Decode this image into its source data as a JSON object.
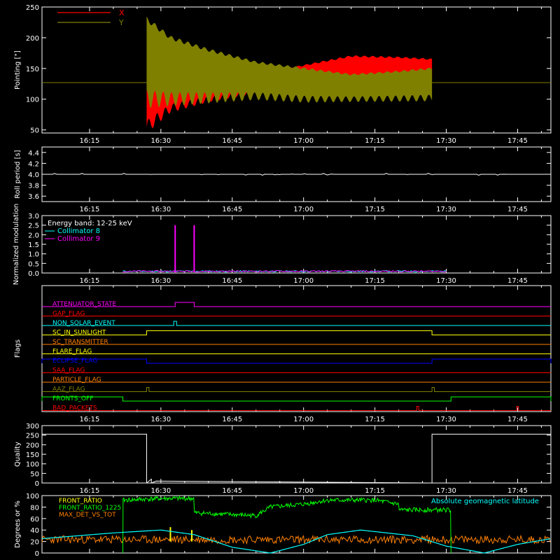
{
  "figure": {
    "background": "#000000",
    "foreground": "#ffffff"
  },
  "time_axis": {
    "start": "16:05",
    "end": "17:52",
    "tick_labels": [
      "16:15",
      "16:30",
      "16:45",
      "17:00",
      "17:15",
      "17:30",
      "17:45"
    ]
  },
  "chart_data": [
    {
      "id": "pointing",
      "type": "line",
      "ylabel": "Pointing [\"]",
      "ylim": [
        45,
        250
      ],
      "yticks": [
        50,
        100,
        150,
        200,
        250
      ],
      "legend": [
        {
          "name": "X",
          "color": "#ff0000"
        },
        {
          "name": "Y",
          "color": "#808000"
        }
      ],
      "baseline_value": 127,
      "active_range": [
        "16:27",
        "17:27"
      ],
      "envelope_x": {
        "times": [
          "16:27",
          "16:32",
          "16:40",
          "16:50",
          "17:00",
          "17:10",
          "17:20",
          "17:27"
        ],
        "upper": [
          150,
          148,
          143,
          140,
          155,
          170,
          168,
          165
        ],
        "lower": [
          55,
          85,
          100,
          112,
          120,
          127,
          130,
          132
        ]
      },
      "envelope_y": {
        "times": [
          "16:27",
          "16:32",
          "16:40",
          "16:50",
          "17:00",
          "17:10",
          "17:20",
          "17:27"
        ],
        "upper": [
          230,
          200,
          180,
          160,
          150,
          140,
          145,
          150
        ],
        "lower": [
          100,
          100,
          102,
          105,
          100,
          100,
          101,
          102
        ]
      }
    },
    {
      "id": "roll",
      "type": "line",
      "ylabel": "Roll period [s]",
      "ylim": [
        3.5,
        4.5
      ],
      "yticks": [
        3.6,
        3.8,
        4.0,
        4.2,
        4.4
      ],
      "series": [
        {
          "name": "roll period",
          "color": "#ffffff",
          "value": 4.0
        }
      ]
    },
    {
      "id": "modulation",
      "type": "line",
      "ylabel": "Normalized modulation",
      "ylim": [
        0,
        3.0
      ],
      "yticks": [
        0.0,
        0.5,
        1.0,
        1.5,
        2.0,
        2.5,
        3.0
      ],
      "legend": [
        {
          "name": "Energy band: 12-25 keV",
          "color": "#ffffff"
        },
        {
          "name": "Collimator 8",
          "color": "#00ffff"
        },
        {
          "name": "Collimator 9",
          "color": "#ff00ff"
        }
      ],
      "active_range": [
        "16:22",
        "17:30"
      ],
      "base_level": 0.05,
      "spikes": [
        {
          "time": "16:33",
          "value": 2.5,
          "color": "#ff00ff"
        },
        {
          "time": "16:37",
          "value": 2.5,
          "color": "#ff00ff"
        }
      ]
    },
    {
      "id": "flags",
      "type": "line",
      "ylabel": "Flags",
      "flags": [
        {
          "name": "ATTENUATOR_STATE",
          "color": "#ff00ff",
          "pulses": [
            [
              "16:33",
              "16:37"
            ]
          ]
        },
        {
          "name": "GAP_FLAG",
          "color": "#ff0000",
          "pulses": []
        },
        {
          "name": "NON_SOLAR_EVENT",
          "color": "#00ffff",
          "pulses": [
            [
              "16:32.7",
              "16:33.3"
            ]
          ]
        },
        {
          "name": "SC_IN_SUNLIGHT",
          "color": "#ffff00",
          "pulses": [
            [
              "16:27",
              "17:27"
            ]
          ]
        },
        {
          "name": "SC_TRANSMITTER",
          "color": "#ff8000",
          "pulses": []
        },
        {
          "name": "FLARE_FLAG",
          "color": "#ffff00",
          "pulses": []
        },
        {
          "name": "ECLIPSE_FLAG",
          "color": "#0000ff",
          "pulses": [
            [
              "16:05",
              "16:27"
            ],
            [
              "17:27",
              "17:52"
            ]
          ]
        },
        {
          "name": "SAA_FLAG",
          "color": "#ff0000",
          "pulses": []
        },
        {
          "name": "PARTICLE_FLAG",
          "color": "#ff8000",
          "pulses": []
        },
        {
          "name": "AAZ_FLAG",
          "color": "#808000",
          "pulses": [
            [
              "16:27",
              "16:27.5"
            ],
            [
              "17:27",
              "17:27.5"
            ]
          ]
        },
        {
          "name": "FRONTS_OFF",
          "color": "#00ff00",
          "pulses": [
            [
              "16:05",
              "16:22"
            ],
            [
              "17:31",
              "17:52"
            ]
          ]
        },
        {
          "name": "BAD_PACKETS",
          "color": "#ff0000",
          "pulses": [
            [
              "17:23.8",
              "17:24.2"
            ],
            [
              "17:44.8",
              "17:45.2"
            ]
          ]
        }
      ]
    },
    {
      "id": "quality",
      "type": "line",
      "ylabel": "Quality",
      "ylim": [
        0,
        300
      ],
      "yticks": [
        0,
        50,
        100,
        150,
        200,
        250,
        300
      ],
      "series": [
        {
          "name": "quality",
          "color": "#ffffff",
          "times": [
            "16:05",
            "16:27",
            "16:27",
            "16:28",
            "16:28",
            "16:29",
            "17:27",
            "17:27",
            "17:52"
          ],
          "values": [
            255,
            255,
            0,
            20,
            0,
            10,
            0,
            255,
            255
          ]
        }
      ]
    },
    {
      "id": "geomag",
      "type": "line",
      "ylabel": "Degrees or %",
      "ylim": [
        0,
        100
      ],
      "yticks": [
        0,
        20,
        40,
        60,
        80,
        100
      ],
      "legend": [
        {
          "name": "FRONT_RATIO",
          "color": "#ffff00"
        },
        {
          "name": "FRONT_RATIO_1225",
          "color": "#00ff00"
        },
        {
          "name": "MAX_DET_VS_TOT",
          "color": "#ff8000"
        }
      ],
      "annotation": {
        "text": "Absolute geomagnetic latitude",
        "color": "#00ffff"
      },
      "latitude": {
        "times": [
          "16:05",
          "16:20",
          "16:30",
          "16:37",
          "16:45",
          "16:53",
          "17:00",
          "17:05",
          "17:12",
          "17:23",
          "17:30",
          "17:38",
          "17:45",
          "17:52"
        ],
        "values": [
          25,
          35,
          40,
          32,
          10,
          0,
          15,
          32,
          40,
          30,
          12,
          0,
          15,
          25
        ]
      },
      "front_ratio_1225": {
        "times": [
          "16:22",
          "16:22",
          "16:30",
          "16:37",
          "16:37",
          "16:50",
          "16:53",
          "17:00",
          "17:05",
          "17:15",
          "17:20",
          "17:20",
          "17:30",
          "17:31",
          "17:31"
        ],
        "values": [
          0,
          92,
          95,
          95,
          70,
          65,
          80,
          85,
          92,
          92,
          85,
          75,
          75,
          75,
          0
        ]
      },
      "max_det_vs_tot_level": 22,
      "front_ratio_spikes": [
        {
          "time": "16:32",
          "value": 45
        },
        {
          "time": "16:36.5",
          "value": 40
        }
      ]
    }
  ]
}
